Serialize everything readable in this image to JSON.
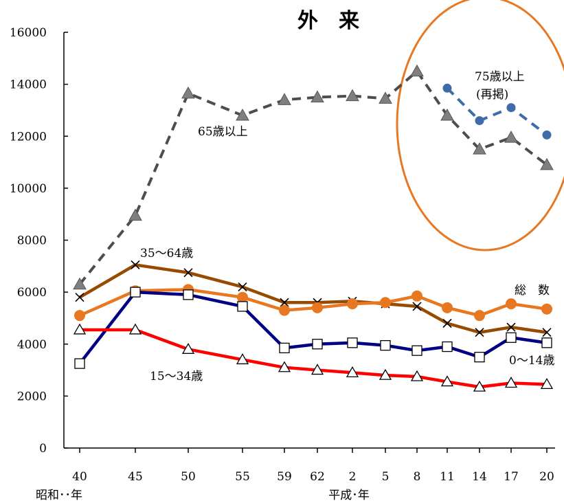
{
  "chart_data": {
    "type": "line",
    "title": "外　来",
    "categories": [
      "40",
      "45",
      "50",
      "55",
      "59",
      "62",
      "2",
      "5",
      "8",
      "11",
      "14",
      "17",
      "20"
    ],
    "era_labels": [
      "昭和･･年",
      "平成･年"
    ],
    "ylim": [
      0,
      16000
    ],
    "yticks": [
      "0",
      "2000",
      "4000",
      "6000",
      "8000",
      "10000",
      "12000",
      "14000",
      "16000"
    ],
    "grid": false,
    "series": [
      {
        "name": "65歳以上",
        "color": "#4d4d4d",
        "dashed": true,
        "marker": "triangle-filled",
        "values": [
          6300,
          8950,
          13650,
          12800,
          13400,
          13500,
          13550,
          13450,
          14500,
          12800,
          11500,
          11950,
          10900
        ]
      },
      {
        "name": "75歳以上（再掲）",
        "color": "#3f6ca8",
        "dashed": true,
        "marker": "circle-filled",
        "values": [
          null,
          null,
          null,
          null,
          null,
          null,
          null,
          null,
          null,
          13850,
          12600,
          13100,
          12050
        ]
      },
      {
        "name": "35～64歳",
        "color": "#964b00",
        "dashed": false,
        "marker": "x",
        "values": [
          5800,
          7050,
          6750,
          6200,
          5600,
          5600,
          5650,
          5550,
          5450,
          4800,
          4450,
          4650,
          4450
        ]
      },
      {
        "name": "総　数",
        "color": "#e87722",
        "dashed": false,
        "marker": "circle-filled",
        "values": [
          5100,
          6050,
          6100,
          5800,
          5300,
          5400,
          5550,
          5600,
          5850,
          5400,
          5100,
          5550,
          5350
        ]
      },
      {
        "name": "0～14歳",
        "color": "#000080",
        "dashed": false,
        "marker": "square-open",
        "values": [
          3250,
          6000,
          5900,
          5450,
          3850,
          4000,
          4050,
          3950,
          3750,
          3900,
          3500,
          4250,
          4050
        ]
      },
      {
        "name": "15～34歳",
        "color": "#ff0000",
        "dashed": false,
        "marker": "triangle-open",
        "values": [
          4550,
          4550,
          3800,
          3400,
          3100,
          3000,
          2900,
          2800,
          2750,
          2550,
          2350,
          2500,
          2450
        ]
      }
    ],
    "annotations": [
      {
        "text": "75歳以上",
        "target": "75歳以上（再掲）"
      },
      {
        "text": "(再掲)",
        "target": "75歳以上（再掲）"
      },
      {
        "text": "65歳以上",
        "target": "65歳以上"
      },
      {
        "text": "35～64歳",
        "target": "35～64歳"
      },
      {
        "text": "総　数",
        "target": "総　数"
      },
      {
        "text": "0～14歳",
        "target": "0～14歳"
      },
      {
        "text": "15～34歳",
        "target": "15～34歳"
      }
    ],
    "highlight": {
      "shape": "ellipse",
      "color": "#e87722",
      "around_categories": [
        "11",
        "14",
        "17",
        "20"
      ]
    }
  }
}
